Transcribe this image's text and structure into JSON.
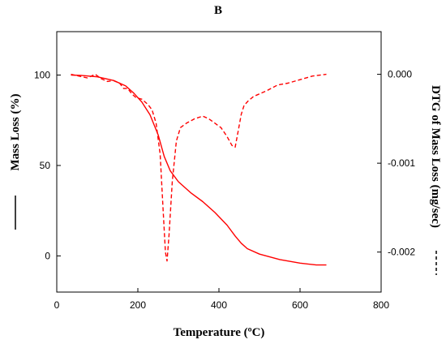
{
  "chart_data": {
    "type": "line",
    "title": "B",
    "xlabel": "Temperature (ºC)",
    "ylabel_left": "Mass Loss (%)",
    "ylabel_right": "DTG of Mass Loss (mg/sec)",
    "xlim": [
      0,
      800
    ],
    "ylim_left": [
      -20,
      124
    ],
    "ylim_right": [
      -0.00245,
      0.00048
    ],
    "x_ticks": [
      0,
      200,
      400,
      600,
      800
    ],
    "y_ticks_left": [
      0,
      50,
      100
    ],
    "y_ticks_right": [
      0.0,
      -0.001,
      -0.002
    ],
    "x_tick_labels": [
      "0",
      "200",
      "400",
      "600",
      "800"
    ],
    "y_tick_labels_left": [
      "0",
      "50",
      "100"
    ],
    "y_tick_labels_right": [
      "0.000",
      "-0.001",
      "-0.002"
    ],
    "grid": false,
    "color": "#ff0000",
    "series": [
      {
        "axis": "left",
        "style": "solid",
        "x": [
          35,
          60,
          100,
          140,
          170,
          190,
          210,
          230,
          250,
          265,
          280,
          300,
          330,
          360,
          390,
          420,
          440,
          455,
          470,
          500,
          550,
          600,
          640,
          665
        ],
        "y": [
          100,
          99.8,
          99,
          97,
          94,
          90,
          85,
          78,
          67,
          55,
          47,
          41,
          35,
          30,
          24,
          17,
          11,
          7,
          4,
          1,
          -2,
          -4,
          -5,
          -5
        ]
      },
      {
        "axis": "right",
        "style": "dashed",
        "x": [
          35,
          55,
          75,
          95,
          110,
          125,
          140,
          155,
          165,
          175,
          185,
          195,
          210,
          225,
          235,
          245,
          255,
          262,
          268,
          272,
          277,
          285,
          295,
          305,
          320,
          340,
          360,
          375,
          390,
          405,
          420,
          432,
          440,
          447,
          455,
          462,
          472,
          485,
          500,
          520,
          545,
          570,
          600,
          630,
          665
        ],
        "y": [
          0.0,
          -2e-05,
          -4e-05,
          0.0,
          -5e-05,
          -8e-05,
          -7e-05,
          -0.0001,
          -0.00016,
          -0.00016,
          -0.00022,
          -0.00026,
          -0.00028,
          -0.00034,
          -0.0004,
          -0.00055,
          -0.0009,
          -0.0015,
          -0.002,
          -0.0021,
          -0.0018,
          -0.0012,
          -0.00075,
          -0.0006,
          -0.00055,
          -0.0005,
          -0.00047,
          -0.0005,
          -0.00055,
          -0.0006,
          -0.0007,
          -0.0008,
          -0.00082,
          -0.00065,
          -0.00045,
          -0.00035,
          -0.0003,
          -0.00025,
          -0.00022,
          -0.00018,
          -0.00012,
          -0.0001,
          -6e-05,
          -2e-05,
          0.0
        ]
      }
    ]
  }
}
